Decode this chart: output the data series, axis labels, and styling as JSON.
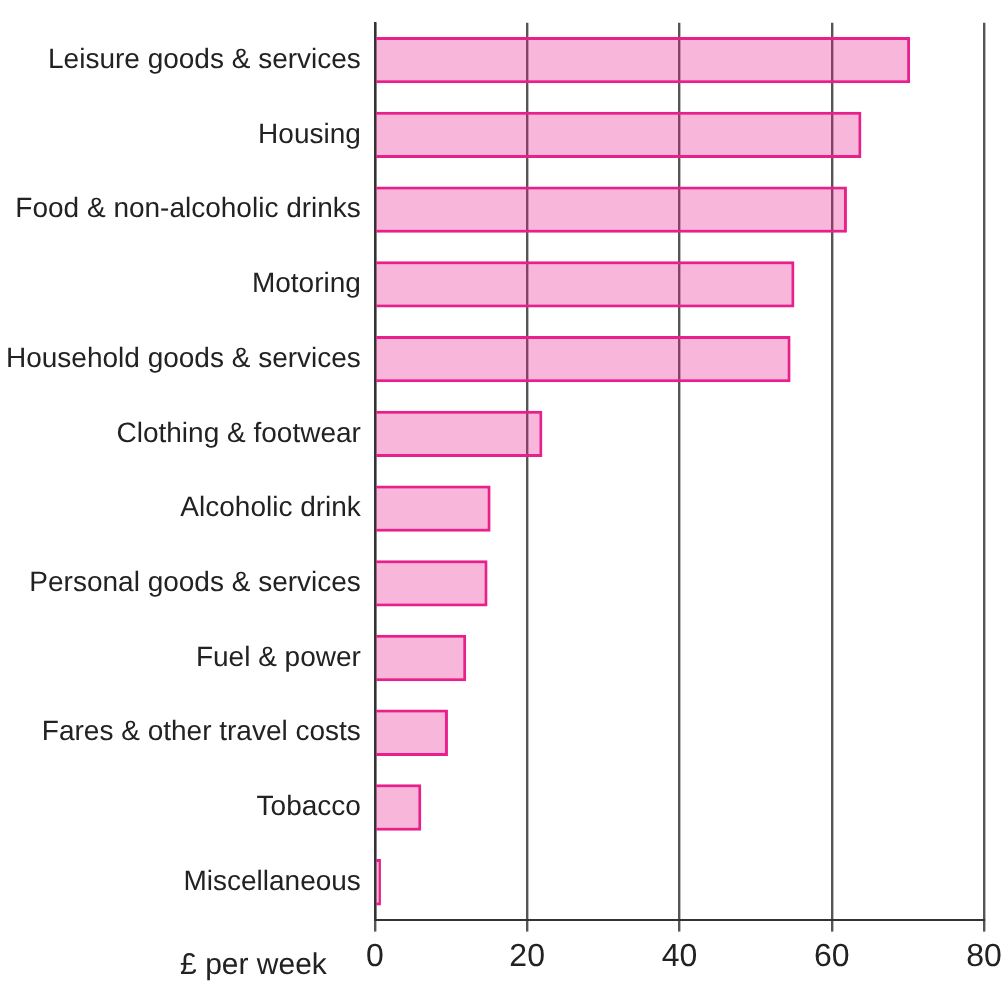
{
  "chart_data": {
    "type": "bar",
    "orientation": "horizontal",
    "xlabel": "£ per week",
    "categories": [
      "Leisure goods & services",
      "Housing",
      "Food & non-alcoholic drinks",
      "Motoring",
      "Household goods & services",
      "Clothing & footwear",
      "Alcoholic drink",
      "Personal goods & services",
      "Fuel & power",
      "Fares & other travel costs",
      "Tobacco",
      "Miscellaneous"
    ],
    "values": [
      70.3,
      63.9,
      62.0,
      55.1,
      54.6,
      22.0,
      15.2,
      14.8,
      12.0,
      9.6,
      6.1,
      0.8
    ],
    "color": "#e8208c",
    "xlim": [
      0,
      80
    ],
    "xticks": [
      0,
      20,
      40,
      60,
      80
    ],
    "grid": "x",
    "legend": false
  }
}
